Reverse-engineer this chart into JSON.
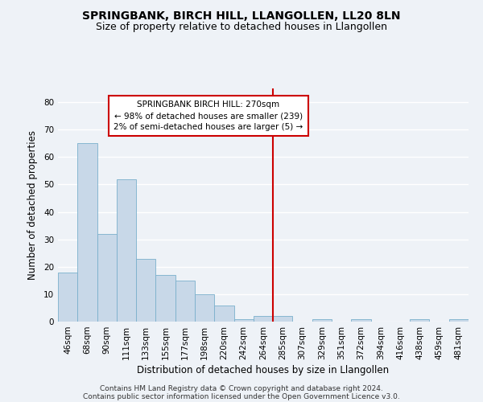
{
  "title": "SPRINGBANK, BIRCH HILL, LLANGOLLEN, LL20 8LN",
  "subtitle": "Size of property relative to detached houses in Llangollen",
  "xlabel": "Distribution of detached houses by size in Llangollen",
  "ylabel": "Number of detached properties",
  "footer_line1": "Contains HM Land Registry data © Crown copyright and database right 2024.",
  "footer_line2": "Contains public sector information licensed under the Open Government Licence v3.0.",
  "bin_labels": [
    "46sqm",
    "68sqm",
    "90sqm",
    "111sqm",
    "133sqm",
    "155sqm",
    "177sqm",
    "198sqm",
    "220sqm",
    "242sqm",
    "264sqm",
    "285sqm",
    "307sqm",
    "329sqm",
    "351sqm",
    "372sqm",
    "394sqm",
    "416sqm",
    "438sqm",
    "459sqm",
    "481sqm"
  ],
  "bar_heights": [
    18,
    65,
    32,
    52,
    23,
    17,
    15,
    10,
    6,
    1,
    2,
    2,
    0,
    1,
    0,
    1,
    0,
    0,
    1,
    0,
    1
  ],
  "bar_color": "#c8d8e8",
  "bar_edge_color": "#7ab0cc",
  "vline_x_index": 10.5,
  "vline_color": "#cc0000",
  "annotation_title": "SPRINGBANK BIRCH HILL: 270sqm",
  "annotation_line1": "← 98% of detached houses are smaller (239)",
  "annotation_line2": "2% of semi-detached houses are larger (5) →",
  "annotation_box_color": "#ffffff",
  "annotation_box_edge": "#cc0000",
  "ylim": [
    0,
    85
  ],
  "yticks": [
    0,
    10,
    20,
    30,
    40,
    50,
    60,
    70,
    80
  ],
  "background_color": "#eef2f7",
  "grid_color": "#ffffff",
  "title_fontsize": 10,
  "subtitle_fontsize": 9,
  "xlabel_fontsize": 8.5,
  "ylabel_fontsize": 8.5,
  "tick_fontsize": 7.5,
  "footer_fontsize": 6.5
}
